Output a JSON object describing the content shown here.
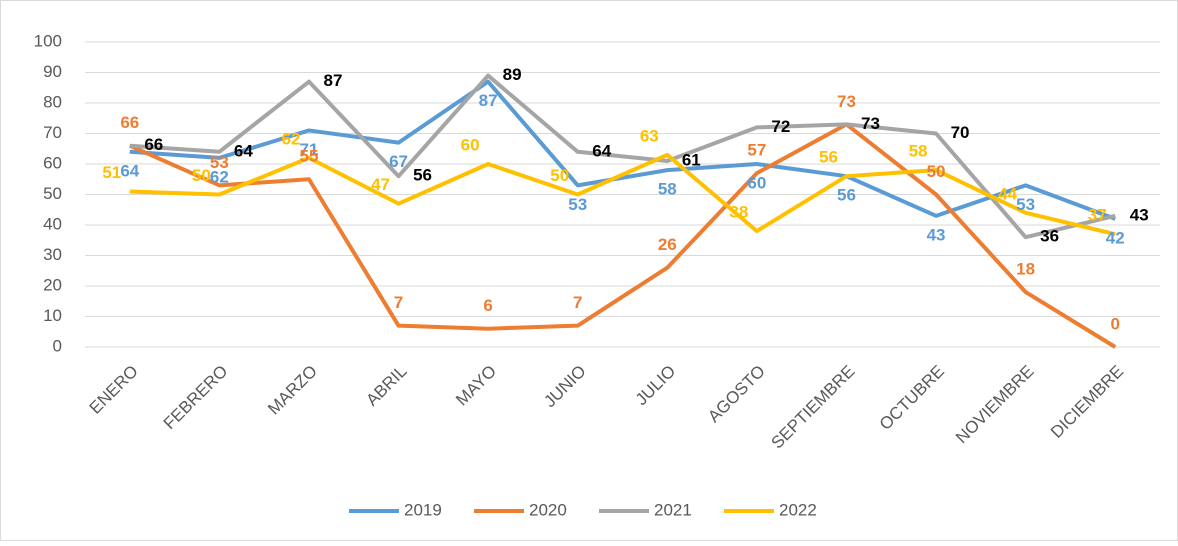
{
  "chart_data": {
    "type": "line",
    "categories": [
      "ENERO",
      "FEBRERO",
      "MARZO",
      "ABRIL",
      "MAYO",
      "JUNIO",
      "JULIO",
      "AGOSTO",
      "SEPTIEMBRE",
      "OCTUBRE",
      "NOVIEMBRE",
      "DICIEMBRE"
    ],
    "series": [
      {
        "name": "2019",
        "color": "#5b9bd5",
        "label_color": "#5b9bd5",
        "values": [
          64,
          62,
          71,
          67,
          87,
          53,
          58,
          60,
          56,
          43,
          53,
          42
        ]
      },
      {
        "name": "2020",
        "color": "#ed7d31",
        "label_color": "#ed7d31",
        "values": [
          66,
          53,
          55,
          7,
          6,
          7,
          26,
          57,
          73,
          50,
          18,
          0
        ]
      },
      {
        "name": "2021",
        "color": "#a5a5a5",
        "label_color": "#000000",
        "values": [
          66,
          64,
          87,
          56,
          89,
          64,
          61,
          72,
          73,
          70,
          36,
          43
        ]
      },
      {
        "name": "2022",
        "color": "#ffc000",
        "label_color": "#ffc000",
        "values": [
          51,
          50,
          62,
          47,
          60,
          50,
          63,
          38,
          56,
          58,
          44,
          37
        ]
      }
    ],
    "ylim": [
      0,
      100
    ],
    "yticks": [
      0,
      10,
      20,
      30,
      40,
      50,
      60,
      70,
      80,
      90,
      100
    ],
    "grid": true,
    "legend": "bottom"
  }
}
